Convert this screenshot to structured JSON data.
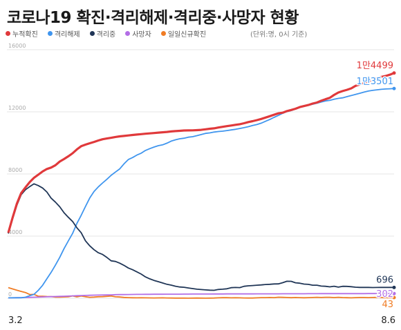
{
  "title": "코로나19 확진·격리해제·격리중·사망자 현황",
  "unit_note": "(단위:명, 0시 기준)",
  "colors": {
    "confirmed": "#e0393b",
    "released": "#3f95ee",
    "isolated": "#1f3556",
    "deaths": "#b36ee6",
    "daily": "#f07c24"
  },
  "chart_data": {
    "type": "line",
    "x_start_label": "3.2",
    "x_end_label": "8.6",
    "ylim": [
      0,
      16000
    ],
    "y_ticks": [
      0,
      4000,
      8000,
      12000,
      16000
    ],
    "y_tick_labels": [
      "0",
      "4000",
      "8000",
      "12000",
      "16000"
    ],
    "series": [
      {
        "key": "confirmed",
        "name": "누적확진",
        "end_label": "1만4499",
        "values": [
          4212,
          5186,
          6088,
          6767,
          7134,
          7478,
          7755,
          7957,
          8162,
          8320,
          8413,
          8565,
          8799,
          8961,
          9137,
          9332,
          9583,
          9786,
          9887,
          9976,
          10062,
          10156,
          10237,
          10284,
          10331,
          10384,
          10423,
          10450,
          10480,
          10512,
          10538,
          10564,
          10591,
          10613,
          10635,
          10661,
          10683,
          10708,
          10738,
          10761,
          10780,
          10801,
          10804,
          10810,
          10822,
          10840,
          10874,
          10909,
          10936,
          10991,
          11037,
          11078,
          11122,
          11165,
          11206,
          11265,
          11344,
          11402,
          11468,
          11541,
          11629,
          11719,
          11814,
          11902,
          11947,
          12051,
          12121,
          12198,
          12306,
          12373,
          12438,
          12535,
          12602,
          12715,
          12813,
          12904,
          13091,
          13244,
          13338,
          13417,
          13512,
          13672,
          13771,
          13879,
          13979,
          14092,
          14175,
          14251,
          14305,
          14389,
          14499
        ]
      },
      {
        "key": "released",
        "name": "격리해제",
        "end_label": "1만3501",
        "values": [
          28,
          31,
          32,
          33,
          66,
          166,
          251,
          510,
          831,
          1252,
          1670,
          2138,
          2630,
          3190,
          3691,
          4175,
          4813,
          5337,
          5905,
          6454,
          6870,
          7167,
          7423,
          7659,
          7917,
          8124,
          8327,
          8654,
          8930,
          9059,
          9218,
          9338,
          9517,
          9633,
          9735,
          9823,
          9877,
          9983,
          10115,
          10198,
          10267,
          10300,
          10370,
          10399,
          10465,
          10537,
          10613,
          10645,
          10699,
          10734,
          10756,
          10794,
          10834,
          10874,
          10930,
          10982,
          11044,
          11118,
          11181,
          11272,
          11390,
          11505,
          11644,
          11771,
          11906,
          12012,
          12085,
          12180,
          12283,
          12350,
          12422,
          12489,
          12556,
          12637,
          12702,
          12738,
          12808,
          12867,
          12903,
          12977,
          13050,
          13120,
          13195,
          13270,
          13340,
          13380,
          13417,
          13448,
          13471,
          13486,
          13501
        ]
      },
      {
        "key": "isolated",
        "name": "격리중",
        "end_label": "696",
        "values": [
          4166,
          5101,
          5988,
          6662,
          6986,
          7186,
          7363,
          7253,
          7099,
          6838,
          6442,
          6188,
          5891,
          5506,
          5214,
          4941,
          4539,
          4218,
          3697,
          3372,
          3125,
          2930,
          2818,
          2626,
          2409,
          2367,
          2256,
          2116,
          1947,
          1837,
          1699,
          1557,
          1372,
          1247,
          1145,
          1066,
          982,
          897,
          845,
          772,
          726,
          705,
          660,
          621,
          584,
          558,
          536,
          521,
          509,
          566,
          583,
          609,
          680,
          692,
          686,
          769,
          800,
          820,
          838,
          859,
          886,
          900,
          918,
          923,
          998,
          1094,
          1087,
          996,
          970,
          912,
          895,
          841,
          838,
          782,
          769,
          735,
          772,
          716,
          767,
          764,
          742,
          710,
          700,
          698,
          696,
          690,
          695,
          697,
          696,
          696,
          696
        ]
      },
      {
        "key": "deaths",
        "name": "사망자",
        "end_label": "302",
        "values": [
          22,
          28,
          35,
          42,
          50,
          57,
          66,
          75,
          84,
          94,
          104,
          111,
          120,
          131,
          139,
          152,
          165,
          174,
          183,
          192,
          200,
          204,
          208,
          214,
          220,
          229,
          234,
          237,
          240,
          243,
          248,
          250,
          252,
          255,
          256,
          256,
          258,
          260,
          262,
          263,
          264,
          266,
          266,
          269,
          269,
          270,
          271,
          273,
          276,
          277,
          277,
          279,
          280,
          280,
          281,
          282,
          282,
          282,
          283,
          283,
          285,
          285,
          285,
          286,
          287,
          288,
          289,
          289,
          289,
          291,
          292,
          293,
          295,
          296,
          296,
          297,
          297,
          297,
          298,
          299,
          299,
          299,
          300,
          300,
          301,
          301,
          301,
          301,
          302,
          302,
          302
        ]
      },
      {
        "key": "daily",
        "name": "일일신규확진",
        "end_label": "43",
        "values": [
          686,
          600,
          516,
          438,
          367,
          242,
          248,
          131,
          125,
          110,
          107,
          76,
          74,
          84,
          93,
          152,
          87,
          147,
          98,
          64,
          76,
          100,
          104,
          125,
          146,
          94,
          78,
          53,
          39,
          32,
          25,
          30,
          27,
          22,
          18,
          22,
          25,
          18,
          13,
          9,
          11,
          8,
          6,
          10,
          14,
          9,
          4,
          11,
          13,
          27,
          35,
          34,
          26,
          29,
          27,
          19,
          13,
          15,
          25,
          39,
          38,
          49,
          39,
          67,
          56,
          49,
          35,
          50,
          38,
          33,
          41,
          51,
          62,
          48,
          63,
          61,
          44,
          60,
          43,
          36,
          28,
          39,
          48,
          49,
          38,
          51,
          58,
          48,
          25,
          36,
          43
        ]
      }
    ]
  }
}
